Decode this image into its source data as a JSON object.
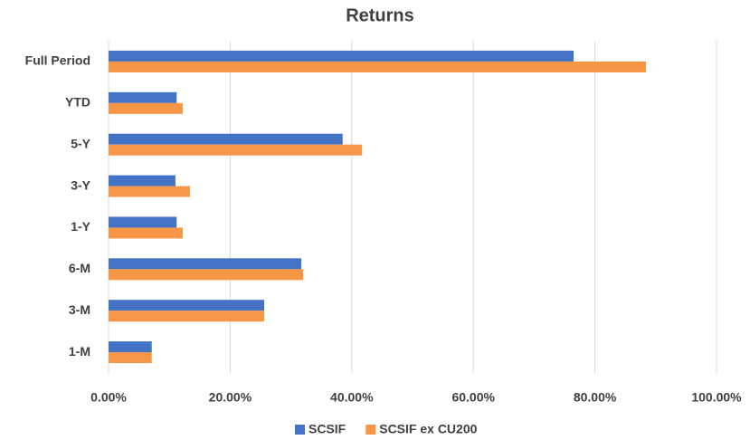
{
  "chart_data": {
    "type": "hbar",
    "title": "Returns",
    "categories": [
      "Full Period",
      "YTD",
      "5-Y",
      "3-Y",
      "1-Y",
      "6-M",
      "3-M",
      "1-M"
    ],
    "series": [
      {
        "name": "SCSIF",
        "color": "#4472c4",
        "values": [
          76.5,
          11.2,
          38.5,
          11.0,
          11.2,
          31.7,
          25.6,
          7.1
        ]
      },
      {
        "name": "SCSIF ex CU200",
        "color": "#f79646",
        "values": [
          88.4,
          12.2,
          41.7,
          13.4,
          12.2,
          32.0,
          25.6,
          7.1
        ]
      }
    ],
    "xlim": [
      0,
      100
    ],
    "xticks": [
      {
        "value": 0,
        "label": "0.00%"
      },
      {
        "value": 20,
        "label": "20.00%"
      },
      {
        "value": 40,
        "label": "40.00%"
      },
      {
        "value": 60,
        "label": "60.00%"
      },
      {
        "value": 80,
        "label": "80.00%"
      },
      {
        "value": 100,
        "label": "100.00%"
      }
    ],
    "grid": true,
    "legend": "bottom"
  }
}
